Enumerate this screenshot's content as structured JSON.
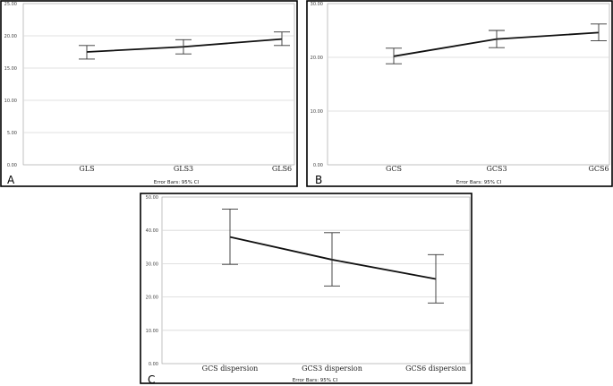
{
  "chart_data": [
    {
      "type": "line",
      "panel_label": "A",
      "categories": [
        "GLS",
        "GLS3",
        "GLS6"
      ],
      "values": [
        17.5,
        18.3,
        19.5
      ],
      "ci_lower": [
        16.4,
        17.2,
        18.5
      ],
      "ci_upper": [
        18.5,
        19.4,
        20.6
      ],
      "ylim": [
        0,
        25
      ],
      "yticks": [
        "0.00",
        "5.00",
        "10.00",
        "15.00",
        "20.00",
        "25.00"
      ],
      "grid": true,
      "note": "Error Bars: 95% CI"
    },
    {
      "type": "line",
      "panel_label": "B",
      "categories": [
        "GCS",
        "GCS3",
        "GCS6"
      ],
      "values": [
        20.2,
        23.4,
        24.6
      ],
      "ci_lower": [
        18.8,
        21.8,
        23.1
      ],
      "ci_upper": [
        21.7,
        25.0,
        26.2
      ],
      "ylim": [
        0,
        30
      ],
      "yticks": [
        "0.00",
        "10.00",
        "20.00",
        "30.00"
      ],
      "grid": true,
      "note": "Error Bars: 95% CI"
    },
    {
      "type": "line",
      "panel_label": "C",
      "categories": [
        "GCS dispersion",
        "GCS3 dispersion",
        "GCS6 dispersion"
      ],
      "values": [
        38.0,
        31.2,
        25.4
      ],
      "ci_lower": [
        29.8,
        23.3,
        18.2
      ],
      "ci_upper": [
        46.4,
        39.3,
        32.7
      ],
      "ylim": [
        0,
        50
      ],
      "yticks": [
        "0.00",
        "10.00",
        "20.00",
        "30.00",
        "40.00",
        "50.00"
      ],
      "grid": true,
      "note": "Error Bars: 95% CI"
    }
  ]
}
